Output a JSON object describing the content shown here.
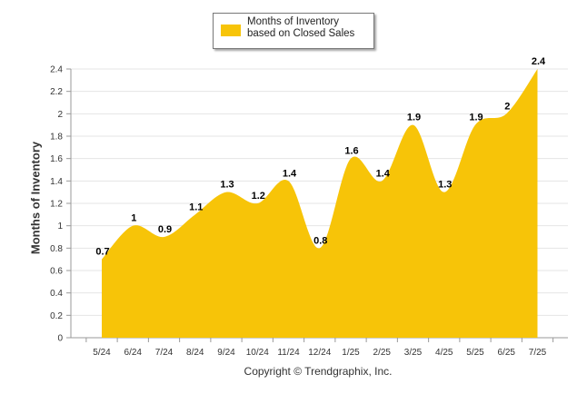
{
  "legend": {
    "label": "Months of Inventory based on Closed Sales"
  },
  "footer": {
    "copyright": "Copyright © Trendgraphix, Inc."
  },
  "colors": {
    "series_fill": "#f7c408",
    "grid": "#e4e4e4",
    "axis": "#999999"
  },
  "chart_data": {
    "type": "area",
    "ylabel": "Months of Inventory",
    "xlabel": "",
    "ylim": [
      0,
      2.4
    ],
    "yticks": [
      "0",
      "0.2",
      "0.4",
      "0.6",
      "0.8",
      "1",
      "1.2",
      "1.4",
      "1.6",
      "1.8",
      "2",
      "2.2",
      "2.4"
    ],
    "categories": [
      "5/24",
      "6/24",
      "7/24",
      "8/24",
      "9/24",
      "10/24",
      "11/24",
      "12/24",
      "1/25",
      "2/25",
      "3/25",
      "4/25",
      "5/25",
      "6/25",
      "7/25"
    ],
    "series": [
      {
        "name": "Months of Inventory based on Closed Sales",
        "values": [
          0.7,
          1,
          0.9,
          1.1,
          1.3,
          1.2,
          1.4,
          0.8,
          1.6,
          1.4,
          1.9,
          1.3,
          1.9,
          2,
          2.4
        ]
      }
    ],
    "grid": true,
    "legend_position": "top"
  }
}
